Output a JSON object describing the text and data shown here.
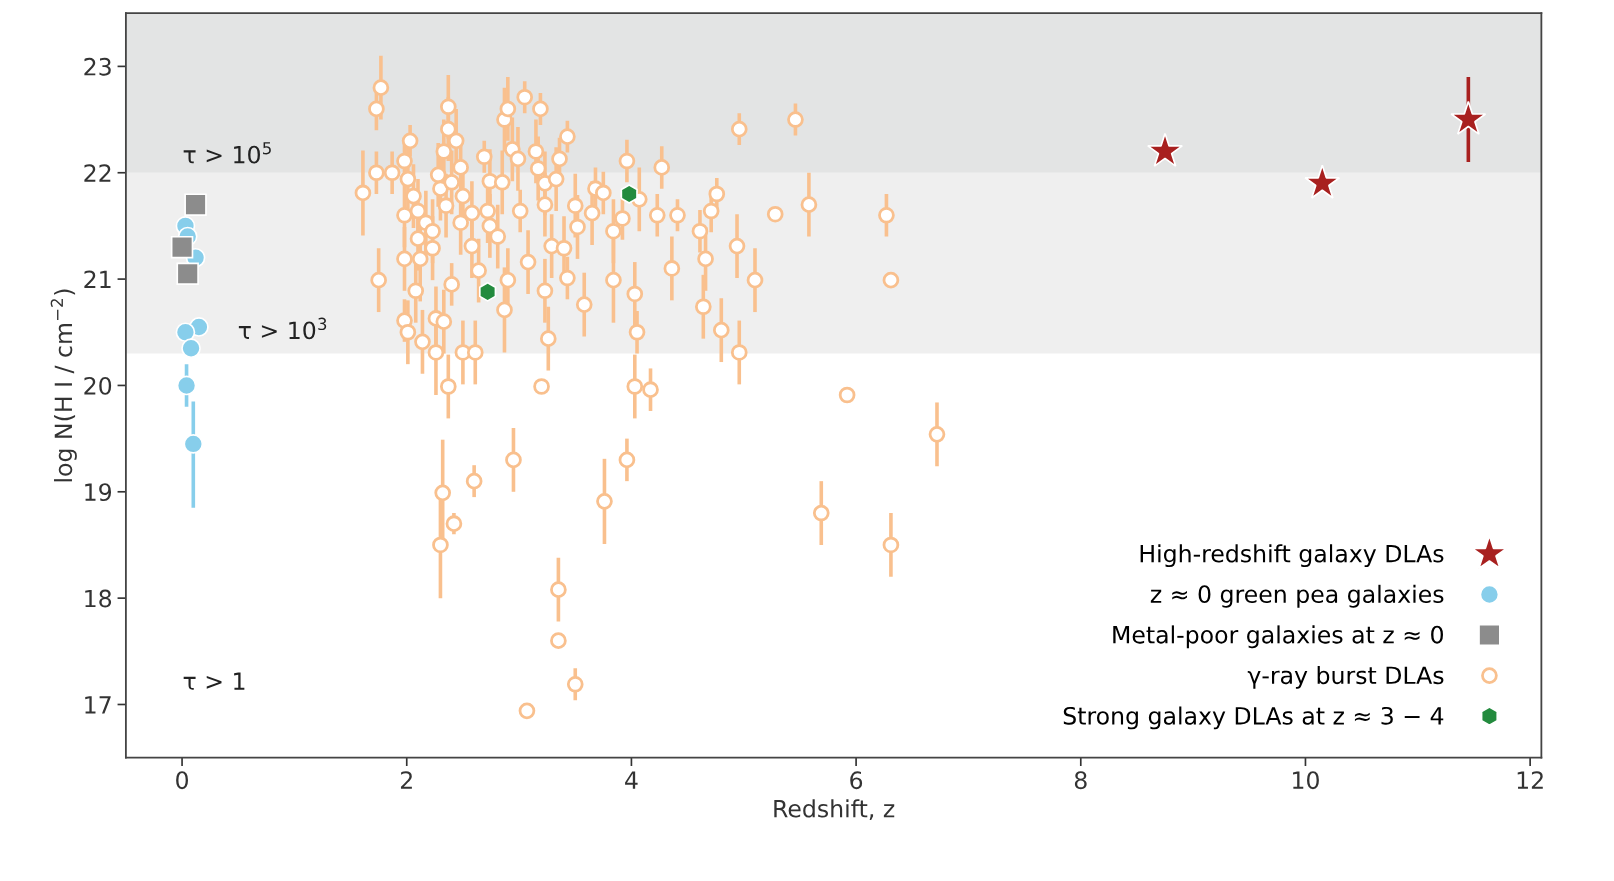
{
  "chart_data": {
    "type": "scatter",
    "xlabel": "Redshift, z",
    "ylabel": "log N(H I / cm$^{−2}$)",
    "xlim": [
      -0.5,
      12.1
    ],
    "ylim": [
      16.5,
      23.5
    ],
    "xticks": [
      0,
      2,
      4,
      6,
      8,
      10,
      12
    ],
    "yticks": [
      17,
      18,
      19,
      20,
      21,
      22,
      23
    ],
    "grid": false,
    "legend": "bottom right",
    "bands": [
      {
        "axis": "y",
        "from": 20.3,
        "to": 22,
        "color": "#efefef"
      },
      {
        "axis": "y",
        "from": 22,
        "to": 23.5,
        "color": "#e3e4e4"
      }
    ],
    "annotations": [
      "τ > 10$^{5}$",
      "τ > 10$^{3}$",
      "τ > 1"
    ],
    "series": [
      {
        "name": "High-redshift galaxy DLAs",
        "color": "#a8201f",
        "marker": "star",
        "x": [
          8.75,
          10.15,
          11.45
        ],
        "values": [
          22.2,
          21.9,
          22.5
        ],
        "errors": [
          null,
          null,
          0.4
        ]
      },
      {
        "name": "z ≈ 0 green pea galaxies",
        "color": "#87ceeb",
        "marker": "circle",
        "x": [
          0.03,
          0.05,
          0.12,
          0.15,
          0.03,
          0.08,
          0.04,
          0.1
        ],
        "values": [
          21.5,
          21.4,
          21.2,
          20.55,
          20.5,
          20.35,
          20.0,
          19.45
        ],
        "errors": [
          null,
          null,
          null,
          null,
          null,
          null,
          [
            19.8,
            20.2
          ],
          [
            18.85,
            19.85
          ]
        ]
      },
      {
        "name": "Metal-poor galaxies at z ≈ 0",
        "color": "#8c8c8c",
        "marker": "square",
        "x": [
          0.12,
          0.0,
          0.05
        ],
        "values": [
          21.7,
          21.3,
          21.05
        ]
      },
      {
        "name": "γ-ray burst DLAs",
        "color": "#f9c08e",
        "marker": "circle",
        "x": [
          1.61,
          1.73,
          1.77,
          1.73,
          1.87,
          1.75,
          2.03,
          1.98,
          1.98,
          1.98,
          2.06,
          2.1,
          2.01,
          2.1,
          1.98,
          2.01,
          2.08,
          2.12,
          2.17,
          2.14,
          2.23,
          2.23,
          2.28,
          2.3,
          2.33,
          2.35,
          2.37,
          2.37,
          2.4,
          2.44,
          2.48,
          2.48,
          2.5,
          2.26,
          2.33,
          2.37,
          2.26,
          2.5,
          2.61,
          2.4,
          2.58,
          2.64,
          2.58,
          2.69,
          2.72,
          2.74,
          2.74,
          2.85,
          2.81,
          2.87,
          2.9,
          2.87,
          2.94,
          2.99,
          3.01,
          2.9,
          3.05,
          3.08,
          3.17,
          3.19,
          3.23,
          3.23,
          3.23,
          3.15,
          3.26,
          3.29,
          3.33,
          3.36,
          3.4,
          3.43,
          3.43,
          3.5,
          3.52,
          3.58,
          3.65,
          3.68,
          3.75,
          3.84,
          3.84,
          3.92,
          3.96,
          4.07,
          4.03,
          4.05,
          4.03,
          4.17,
          4.23,
          4.27,
          4.36,
          4.41,
          4.61,
          4.66,
          4.64,
          4.71,
          4.76,
          4.8,
          4.94,
          4.96,
          4.96,
          5.1,
          5.28,
          5.46,
          5.58,
          6.27,
          6.31,
          5.92,
          5.69,
          6.31,
          6.72,
          2.32,
          2.3,
          2.42,
          2.6,
          2.95,
          3.2,
          3.76,
          3.96,
          3.35,
          3.35,
          3.5,
          3.07
        ],
        "values": [
          21.81,
          22.6,
          22.8,
          22.0,
          22.0,
          20.99,
          22.3,
          22.11,
          21.6,
          21.19,
          21.78,
          21.38,
          21.94,
          21.64,
          20.61,
          20.5,
          20.89,
          21.19,
          21.53,
          20.41,
          21.45,
          21.29,
          21.98,
          21.85,
          22.2,
          21.69,
          22.62,
          22.41,
          21.91,
          22.3,
          22.05,
          21.53,
          21.78,
          20.63,
          20.6,
          19.99,
          20.31,
          20.31,
          20.31,
          20.95,
          21.31,
          21.08,
          21.62,
          22.15,
          21.64,
          21.92,
          21.5,
          21.91,
          21.4,
          22.5,
          22.6,
          20.71,
          22.22,
          22.13,
          21.64,
          20.99,
          22.71,
          21.16,
          22.04,
          22.6,
          21.9,
          21.7,
          20.89,
          22.2,
          20.44,
          21.31,
          21.94,
          22.13,
          21.29,
          22.34,
          21.01,
          21.69,
          21.49,
          20.76,
          21.62,
          21.85,
          21.81,
          21.45,
          20.99,
          21.57,
          22.11,
          21.75,
          20.86,
          20.5,
          19.99,
          19.96,
          21.6,
          22.05,
          21.1,
          21.6,
          21.45,
          21.19,
          20.74,
          21.64,
          21.8,
          20.52,
          21.31,
          20.31,
          22.41,
          20.99,
          21.61,
          22.5,
          21.7,
          21.6,
          20.99,
          19.91,
          18.8,
          18.5,
          19.54,
          18.99,
          18.5,
          18.7,
          19.1,
          19.3,
          19.99,
          18.91,
          19.3,
          18.08,
          17.6,
          17.19,
          16.94
        ],
        "errors": [
          0.4,
          0.2,
          0.3,
          0.2,
          0.2,
          0.3,
          0.15,
          0.2,
          0.3,
          0.3,
          0.3,
          0.3,
          0.3,
          0.3,
          0.2,
          0.3,
          0.3,
          0.4,
          0.3,
          0.3,
          0.3,
          0.3,
          0.3,
          0.3,
          0.3,
          0.3,
          0.3,
          0.3,
          0.3,
          0.3,
          0.3,
          0.3,
          0.3,
          0.3,
          0.3,
          0.3,
          0.4,
          0.3,
          0.3,
          0.2,
          0.3,
          0.3,
          0.3,
          0.15,
          0.3,
          0.3,
          0.3,
          0.3,
          0.3,
          0.3,
          0.3,
          0.4,
          0.3,
          0.3,
          0.2,
          0.3,
          0.15,
          0.3,
          0.3,
          0.15,
          0.3,
          0.3,
          0.3,
          0.3,
          0.3,
          0.3,
          0.3,
          0.2,
          0.3,
          0.15,
          0.2,
          0.3,
          0.3,
          0.3,
          0.3,
          0.2,
          0.2,
          0.3,
          0.4,
          0.2,
          0.2,
          0.3,
          0.3,
          0.2,
          0.3,
          0.2,
          0.2,
          0.2,
          0.3,
          0.15,
          0.2,
          0.3,
          0.3,
          0.2,
          0.15,
          0.3,
          0.3,
          0.3,
          0.15,
          0.3,
          null,
          0.15,
          0.3,
          0.2,
          null,
          null,
          0.3,
          0.3,
          0.3,
          0.5,
          0.5,
          0.1,
          0.15,
          0.3,
          null,
          0.4,
          0.2,
          0.3,
          null,
          0.15,
          null
        ]
      },
      {
        "name": "Strong galaxy DLAs at z ≈ 3 − 4",
        "color": "#238b3e",
        "x": [
          2.72,
          3.98
        ],
        "values": [
          20.88,
          21.8
        ]
      }
    ]
  }
}
